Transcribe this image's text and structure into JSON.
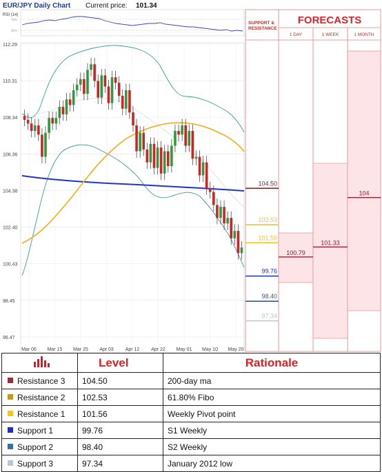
{
  "header": {
    "title": "EUR/JPY Daily Chart",
    "price_label": "Current price:",
    "price_value": "101.34"
  },
  "rsi": {
    "label": "RSI (14)",
    "level_high": "70%",
    "level_low": "30%"
  },
  "forecast": {
    "title": "FORECASTS",
    "sr_label_1": "SUPPORT &",
    "sr_label_2": "RESISTANCE",
    "col_1day": "1 DAY",
    "col_1week": "1 WEEK",
    "col_1month": "1 MONTH"
  },
  "chart_data": {
    "type": "line",
    "title": "EUR/JPY Daily Chart",
    "y_ticks": [
      "112.29",
      "110.31",
      "108.34",
      "106.36",
      "104.38",
      "102.40",
      "100.43",
      "98.45",
      "96.47"
    ],
    "x_ticks": [
      "Mar 06",
      "Mar 15",
      "Mar 25",
      "Apr 03",
      "Apr 12",
      "Apr 22",
      "May 01",
      "May 10",
      "May 20"
    ],
    "ylim": [
      96.47,
      112.29
    ],
    "series": [
      {
        "kind": "candles",
        "values": [
          108.2,
          108.0,
          107.6,
          107.9,
          107.4,
          106.2,
          107.5,
          108.3,
          108.0,
          108.3,
          108.9,
          108.5,
          109.3,
          109.0,
          109.8,
          110.1,
          110.4,
          109.6,
          110.9,
          111.2,
          110.3,
          109.4,
          110.6,
          110.0,
          109.1,
          110.5,
          110.2,
          109.5,
          108.8,
          109.8,
          108.6,
          107.9,
          106.5,
          107.5,
          106.6,
          105.9,
          106.9,
          105.6,
          106.7,
          105.3,
          106.5,
          105.7,
          106.8,
          107.6,
          107.4,
          107.9,
          106.8,
          107.6,
          106.1,
          106.2,
          105.2,
          105.9,
          104.5,
          104.3,
          103.6,
          102.9,
          103.5,
          102.6,
          102.9,
          101.8,
          102.2,
          101.0,
          101.3
        ]
      },
      {
        "kind": "ma_200",
        "values": [
          105.3,
          105.1,
          104.9,
          104.7,
          104.6,
          104.5
        ]
      },
      {
        "kind": "ma_50",
        "values": [
          101.6,
          103.5,
          105.8,
          107.4,
          108.1,
          107.0,
          106.3
        ]
      }
    ],
    "levels": [
      {
        "name": "Resistance 3",
        "value": 104.5,
        "color": "#7a1f2b"
      },
      {
        "name": "Resistance 2",
        "value": 102.53,
        "color": "#e8c060"
      },
      {
        "name": "Resistance 1",
        "value": 101.56,
        "color": "#f3c32a"
      },
      {
        "name": "Support 1",
        "value": 99.76,
        "color": "#1c2fc8"
      },
      {
        "name": "Support 2",
        "value": 98.4,
        "color": "#2f5d93"
      },
      {
        "name": "Support 3",
        "value": 97.34,
        "color": "#b4c8d8"
      }
    ],
    "forecasts": {
      "1 DAY": 100.79,
      "1 WEEK": 101.33,
      "1 MONTH": 104
    }
  },
  "levels_labels": [
    "104.50",
    "102.53",
    "101.56",
    "99.76",
    "98.40",
    "97.34"
  ],
  "forecast_labels": {
    "day": "100.79",
    "week": "101.33",
    "month": "104"
  },
  "table": {
    "head_level": "Level",
    "head_rationale": "Rationale",
    "rows": [
      {
        "name": "Resistance 3",
        "level": "104.50",
        "rationale": "200-day ma",
        "color": "#9c2b36"
      },
      {
        "name": "Resistance 2",
        "level": "102.53",
        "rationale": "61.80% Fibo",
        "color": "#c79a1b"
      },
      {
        "name": "Resistance 1",
        "level": "101.56",
        "rationale": "Weekly Pivot point",
        "color": "#f5c518"
      },
      {
        "name": "Support 1",
        "level": "99.76",
        "rationale": "S1 Weekly",
        "color": "#1c2fc8"
      },
      {
        "name": "Support 2",
        "level": "98.40",
        "rationale": "S2 Weekly",
        "color": "#3a6fa8"
      },
      {
        "name": "Support 3",
        "level": "97.34",
        "rationale": "January 2012 low",
        "color": "#b4c8d8"
      }
    ]
  }
}
